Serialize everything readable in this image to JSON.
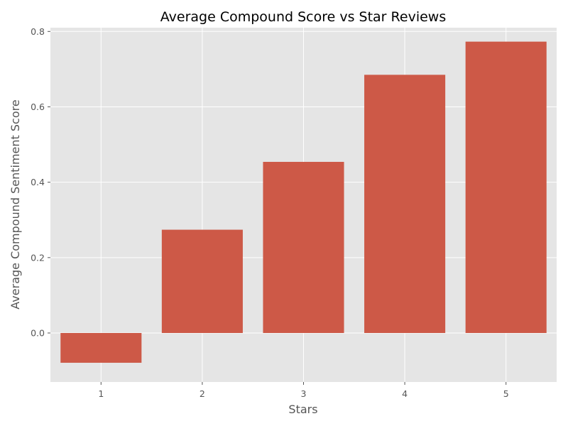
{
  "chart_data": {
    "type": "bar",
    "title": "Average Compound Score vs Star Reviews",
    "xlabel": "Stars",
    "ylabel": "Average Compound Sentiment Score",
    "categories": [
      "1",
      "2",
      "3",
      "4",
      "5"
    ],
    "values": [
      -0.079,
      0.274,
      0.454,
      0.685,
      0.773
    ],
    "ylim": [
      -0.13,
      0.81
    ],
    "yticks": [
      0.0,
      0.2,
      0.4,
      0.6,
      0.8
    ],
    "ytick_labels": [
      "0.0",
      "0.2",
      "0.4",
      "0.6",
      "0.8"
    ],
    "grid": true,
    "style": "ggplot"
  },
  "colors": {
    "bar": "#cd5947",
    "plot_background": "#e5e5e5",
    "grid": "#ffffff",
    "text": "#555555",
    "title": "#000000"
  }
}
